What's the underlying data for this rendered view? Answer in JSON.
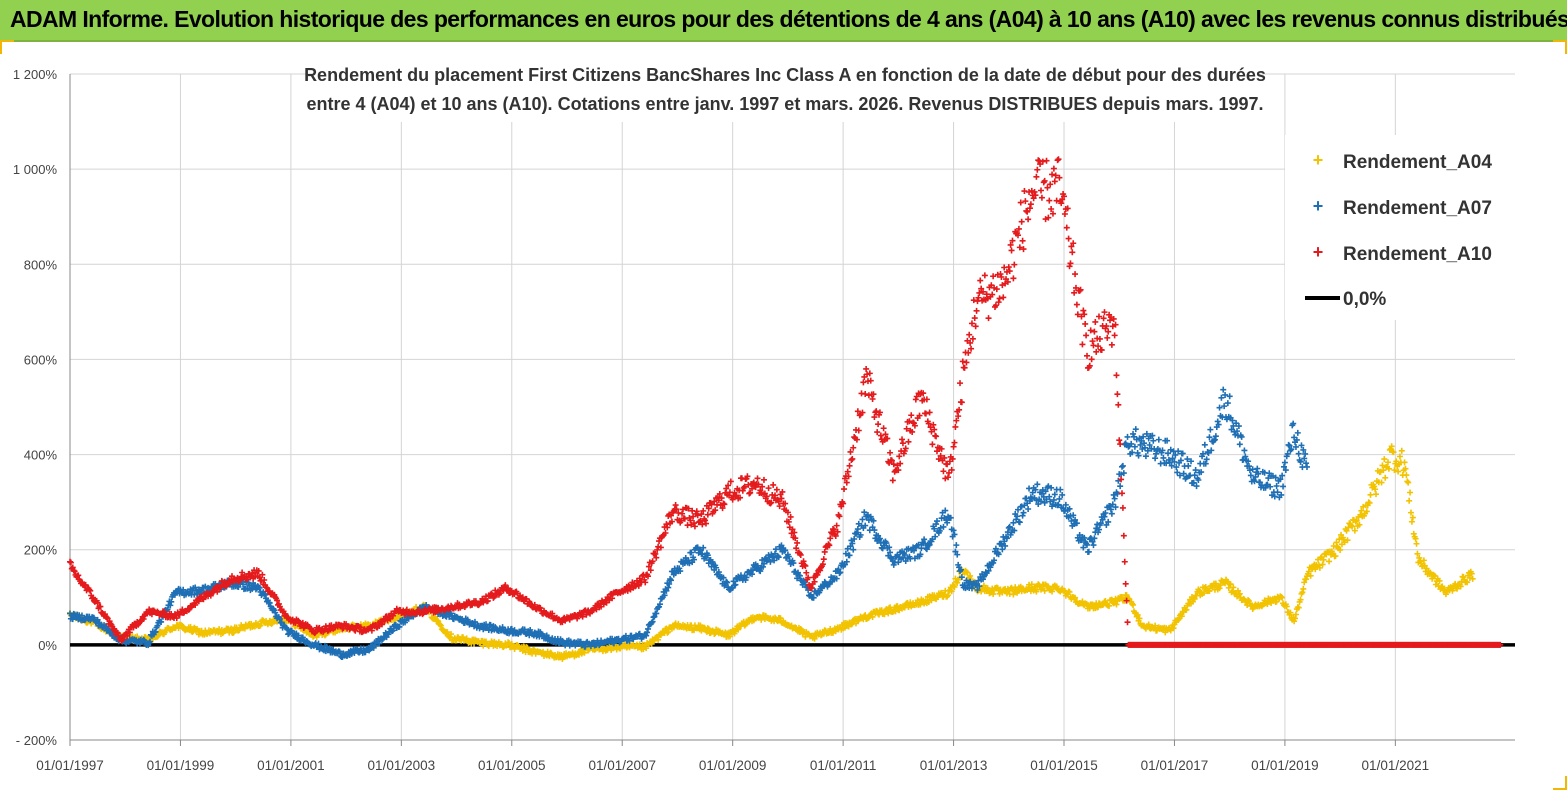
{
  "banner": {
    "title": "ADAM Informe. Evolution historique des performances en euros pour des détentions de 4 ans (A04) à 10 ans (A10) avec les revenus connus distribués"
  },
  "chart_data": {
    "type": "scatter",
    "title_line1": "Rendement du placement First Citizens BancShares Inc Class A en fonction de la date de début pour des durées",
    "title_line2": "entre 4 (A04) et 10 ans (A10). Cotations entre janv. 1997 et mars. 2026. Revenus DISTRIBUES depuis mars. 1997.",
    "xlabel": "",
    "ylabel": "",
    "x_range": [
      "1997-01-01",
      "2023-03-01"
    ],
    "ylim": [
      -200,
      1200
    ],
    "y_ticks": [
      -200,
      0,
      200,
      400,
      600,
      800,
      1000,
      1200
    ],
    "y_tick_labels": [
      "- 200%",
      "0%",
      "200%",
      "400%",
      "600%",
      "800%",
      "1 000%",
      "1 200%"
    ],
    "x_tick_labels": [
      "01/01/1997",
      "01/01/1999",
      "01/01/2001",
      "01/01/2003",
      "01/01/2005",
      "01/01/2007",
      "01/01/2009",
      "01/01/2011",
      "01/01/2013",
      "01/01/2015",
      "01/01/2017",
      "01/01/2019",
      "01/01/2021"
    ],
    "grid": true,
    "legend_position": "top-right",
    "colors": {
      "A04": "#f2c300",
      "A07": "#1f6fb5",
      "A10": "#e41a1c",
      "zero": "#000000"
    },
    "series": [
      {
        "name": "Rendement_A04",
        "key": "A04",
        "points": [
          [
            "1997-01",
            62
          ],
          [
            "1997-06",
            48
          ],
          [
            "1997-12",
            15
          ],
          [
            "1998-06",
            10
          ],
          [
            "1998-12",
            40
          ],
          [
            "1999-06",
            25
          ],
          [
            "1999-12",
            30
          ],
          [
            "2000-06",
            45
          ],
          [
            "2000-12",
            55
          ],
          [
            "2001-06",
            20
          ],
          [
            "2001-12",
            35
          ],
          [
            "2002-06",
            40
          ],
          [
            "2002-12",
            60
          ],
          [
            "2003-06",
            80
          ],
          [
            "2003-12",
            15
          ],
          [
            "2004-06",
            5
          ],
          [
            "2004-12",
            0
          ],
          [
            "2005-06",
            -15
          ],
          [
            "2005-12",
            -25
          ],
          [
            "2006-06",
            -10
          ],
          [
            "2006-12",
            -5
          ],
          [
            "2007-06",
            -5
          ],
          [
            "2007-12",
            40
          ],
          [
            "2008-06",
            35
          ],
          [
            "2008-12",
            20
          ],
          [
            "2009-06",
            60
          ],
          [
            "2009-12",
            50
          ],
          [
            "2010-06",
            15
          ],
          [
            "2010-12",
            35
          ],
          [
            "2011-06",
            60
          ],
          [
            "2011-12",
            75
          ],
          [
            "2012-06",
            90
          ],
          [
            "2012-12",
            110
          ],
          [
            "2013-03",
            160
          ],
          [
            "2013-06",
            120
          ],
          [
            "2013-12",
            110
          ],
          [
            "2014-06",
            120
          ],
          [
            "2014-12",
            120
          ],
          [
            "2015-06",
            80
          ],
          [
            "2015-12",
            90
          ],
          [
            "2016-03",
            100
          ],
          [
            "2016-06",
            40
          ],
          [
            "2016-12",
            30
          ],
          [
            "2017-06",
            110
          ],
          [
            "2017-12",
            130
          ],
          [
            "2018-06",
            80
          ],
          [
            "2018-12",
            100
          ],
          [
            "2019-03",
            50
          ],
          [
            "2019-06",
            150
          ],
          [
            "2019-12",
            200
          ],
          [
            "2020-06",
            280
          ],
          [
            "2020-12",
            400
          ],
          [
            "2021-03",
            380
          ],
          [
            "2021-06",
            180
          ],
          [
            "2021-12",
            110
          ],
          [
            "2022-06",
            150
          ]
        ]
      },
      {
        "name": "Rendement_A07",
        "key": "A07",
        "points": [
          [
            "1997-01",
            60
          ],
          [
            "1997-06",
            55
          ],
          [
            "1997-12",
            10
          ],
          [
            "1998-06",
            5
          ],
          [
            "1998-12",
            110
          ],
          [
            "1999-06",
            115
          ],
          [
            "1999-12",
            130
          ],
          [
            "2000-06",
            120
          ],
          [
            "2000-12",
            30
          ],
          [
            "2001-06",
            0
          ],
          [
            "2001-12",
            -20
          ],
          [
            "2002-06",
            -10
          ],
          [
            "2002-12",
            40
          ],
          [
            "2003-06",
            80
          ],
          [
            "2003-12",
            60
          ],
          [
            "2004-06",
            40
          ],
          [
            "2004-12",
            30
          ],
          [
            "2005-06",
            25
          ],
          [
            "2005-12",
            5
          ],
          [
            "2006-06",
            0
          ],
          [
            "2006-12",
            10
          ],
          [
            "2007-06",
            20
          ],
          [
            "2007-12",
            150
          ],
          [
            "2008-06",
            200
          ],
          [
            "2008-12",
            120
          ],
          [
            "2009-06",
            160
          ],
          [
            "2009-12",
            200
          ],
          [
            "2010-06",
            100
          ],
          [
            "2010-12",
            150
          ],
          [
            "2011-06",
            270
          ],
          [
            "2011-12",
            180
          ],
          [
            "2012-06",
            200
          ],
          [
            "2012-12",
            280
          ],
          [
            "2013-03",
            130
          ],
          [
            "2013-06",
            120
          ],
          [
            "2013-12",
            220
          ],
          [
            "2014-06",
            320
          ],
          [
            "2014-12",
            310
          ],
          [
            "2015-06",
            200
          ],
          [
            "2015-12",
            300
          ],
          [
            "2016-03",
            430
          ],
          [
            "2016-06",
            420
          ],
          [
            "2016-12",
            400
          ],
          [
            "2017-06",
            350
          ],
          [
            "2017-12",
            520
          ],
          [
            "2018-06",
            350
          ],
          [
            "2018-12",
            330
          ],
          [
            "2019-03",
            450
          ],
          [
            "2019-06",
            360
          ]
        ]
      },
      {
        "name": "Rendement_A10",
        "key": "A10",
        "points": [
          [
            "1997-01",
            165
          ],
          [
            "1997-06",
            100
          ],
          [
            "1997-12",
            10
          ],
          [
            "1998-06",
            70
          ],
          [
            "1998-12",
            60
          ],
          [
            "1999-06",
            100
          ],
          [
            "1999-12",
            140
          ],
          [
            "2000-06",
            150
          ],
          [
            "2000-12",
            60
          ],
          [
            "2001-06",
            30
          ],
          [
            "2001-12",
            40
          ],
          [
            "2002-06",
            30
          ],
          [
            "2002-12",
            70
          ],
          [
            "2003-06",
            70
          ],
          [
            "2003-12",
            80
          ],
          [
            "2004-06",
            90
          ],
          [
            "2004-12",
            120
          ],
          [
            "2005-06",
            80
          ],
          [
            "2005-12",
            50
          ],
          [
            "2006-06",
            70
          ],
          [
            "2006-12",
            110
          ],
          [
            "2007-06",
            140
          ],
          [
            "2007-12",
            280
          ],
          [
            "2008-06",
            260
          ],
          [
            "2008-12",
            320
          ],
          [
            "2009-06",
            340
          ],
          [
            "2009-12",
            300
          ],
          [
            "2010-06",
            120
          ],
          [
            "2010-12",
            260
          ],
          [
            "2011-06",
            560
          ],
          [
            "2011-12",
            360
          ],
          [
            "2012-06",
            520
          ],
          [
            "2012-12",
            350
          ],
          [
            "2013-03",
            560
          ],
          [
            "2013-06",
            720
          ],
          [
            "2013-12",
            760
          ],
          [
            "2014-06",
            950
          ],
          [
            "2014-12",
            960
          ],
          [
            "2015-06",
            620
          ],
          [
            "2015-12",
            680
          ],
          [
            "2016-03",
            0
          ],
          [
            "2016-12",
            0
          ],
          [
            "2017-12",
            0
          ],
          [
            "2018-12",
            0
          ],
          [
            "2019-12",
            0
          ],
          [
            "2020-12",
            0
          ],
          [
            "2021-12",
            0
          ],
          [
            "2022-12",
            0
          ]
        ]
      }
    ],
    "zero_line": {
      "name": "0,0%",
      "value": 0
    }
  }
}
